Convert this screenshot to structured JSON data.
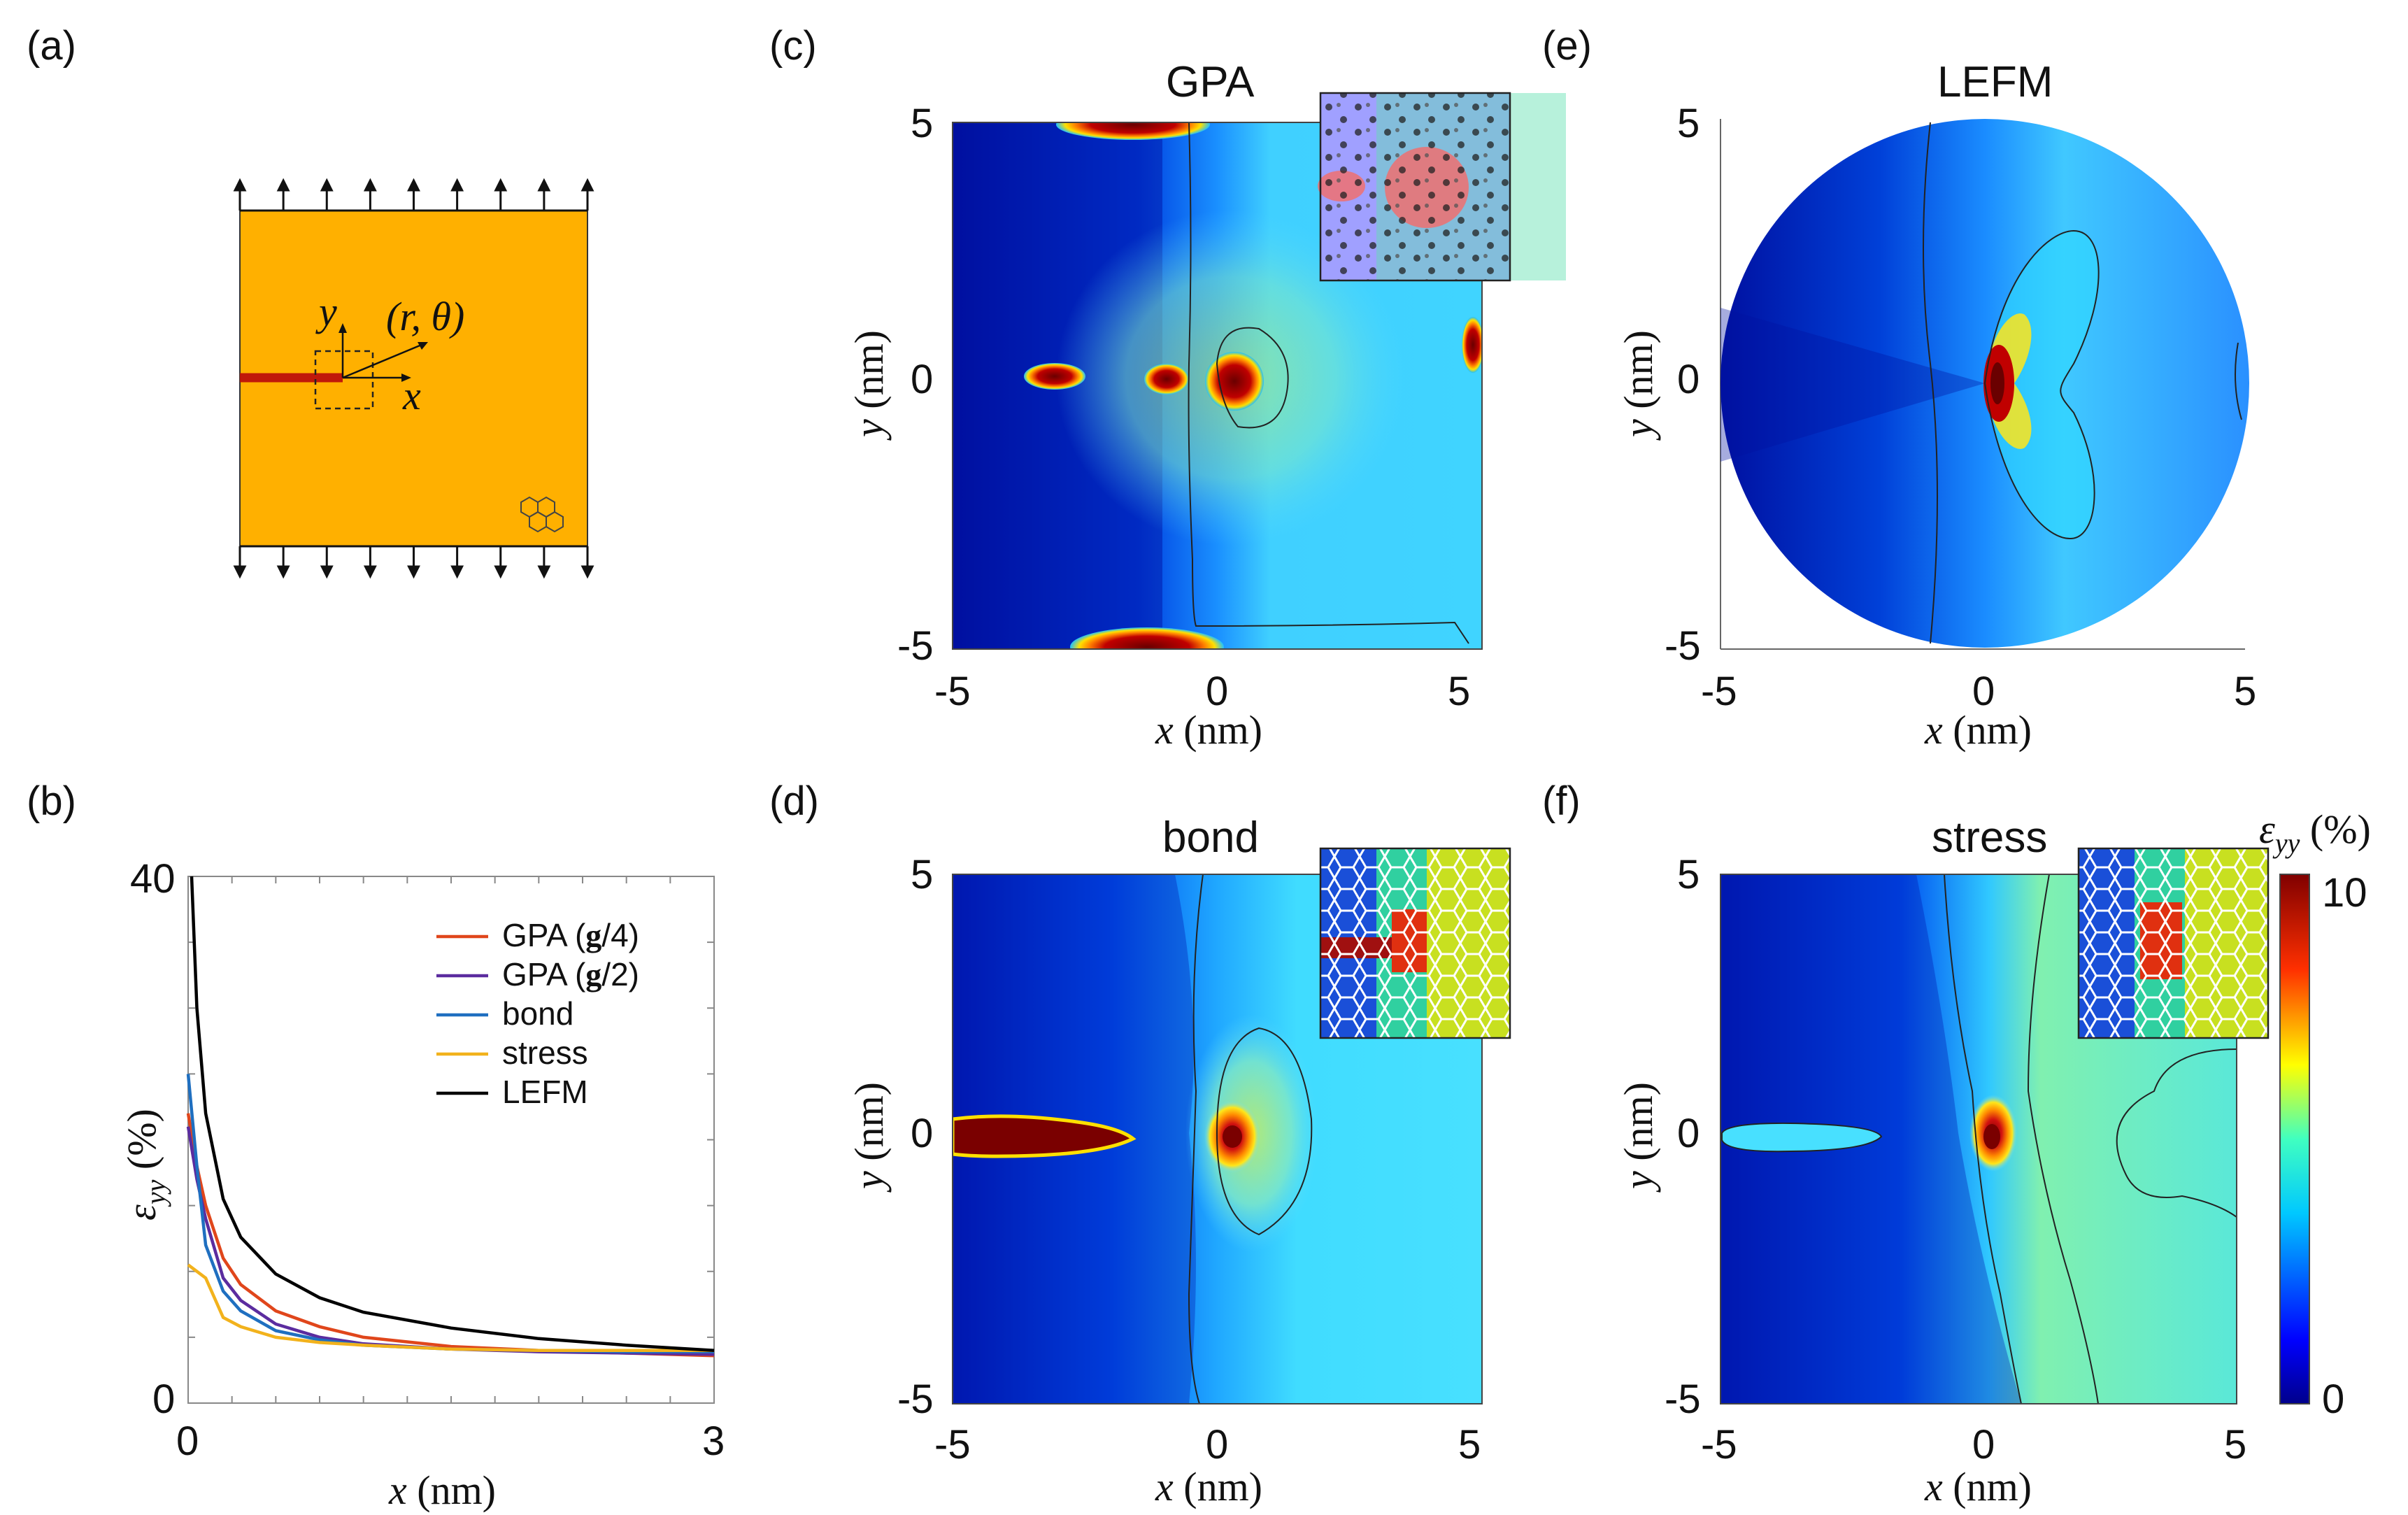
{
  "panels": {
    "a": {
      "label": "(a)",
      "coord_label": "(r, θ)",
      "x_axis": "x",
      "y_axis": "y"
    },
    "b": {
      "label": "(b)"
    },
    "c": {
      "label": "(c)"
    },
    "d": {
      "label": "(d)"
    },
    "e": {
      "label": "(e)"
    },
    "f": {
      "label": "(f)"
    }
  },
  "colors": {
    "orange": "#FFB000",
    "crack": "#C0180A",
    "jet_dark_blue": "#00008B",
    "jet_blue": "#0050FF",
    "jet_cyan": "#33D6FF",
    "jet_yellow": "#FFE61A",
    "jet_red": "#8B0000"
  },
  "colorbar": {
    "symbol": "ε",
    "subscript": "yy",
    "unit": "(%)",
    "max_label": "10",
    "min_label": "0"
  },
  "chart_data": [
    {
      "type": "line",
      "panel": "b",
      "xlabel": "x (nm)",
      "ylabel": "ε_yy (%)",
      "xlim": [
        0,
        3
      ],
      "ylim": [
        0,
        40
      ],
      "x_ticks": [
        "0",
        "3"
      ],
      "y_ticks": [
        "0",
        "40"
      ],
      "series": [
        {
          "name": "GPA (g/4)",
          "color": "#E0461B",
          "x": [
            0,
            0.05,
            0.1,
            0.2,
            0.3,
            0.5,
            0.75,
            1,
            1.5,
            2,
            2.5,
            3
          ],
          "y": [
            22,
            18,
            15,
            11,
            9,
            7,
            5.8,
            5,
            4.3,
            4,
            3.8,
            3.6
          ]
        },
        {
          "name": "GPA (g/2)",
          "color": "#5B2C9F",
          "x": [
            0,
            0.05,
            0.1,
            0.2,
            0.3,
            0.5,
            0.75,
            1,
            1.5,
            2,
            2.5,
            3
          ],
          "y": [
            21,
            17,
            14,
            9.5,
            7.8,
            6,
            5,
            4.5,
            4.1,
            3.9,
            3.8,
            3.7
          ]
        },
        {
          "name": "bond",
          "color": "#1F6FC0",
          "x": [
            0,
            0.05,
            0.1,
            0.2,
            0.3,
            0.5,
            0.75,
            1,
            1.5,
            2,
            2.5,
            3
          ],
          "y": [
            25,
            18,
            12,
            8.5,
            7,
            5.5,
            4.8,
            4.4,
            4.1,
            4,
            3.9,
            3.9
          ]
        },
        {
          "name": "stress",
          "color": "#F2B21C",
          "x": [
            0,
            0.1,
            0.2,
            0.3,
            0.5,
            0.75,
            1,
            1.5,
            2,
            2.5,
            3
          ],
          "y": [
            10.5,
            9.5,
            6.5,
            5.8,
            5,
            4.6,
            4.4,
            4.1,
            4,
            4,
            4
          ]
        },
        {
          "name": "LEFM",
          "color": "#000000",
          "x": [
            0.02,
            0.05,
            0.1,
            0.2,
            0.3,
            0.5,
            0.75,
            1,
            1.5,
            2,
            2.5,
            3
          ],
          "y": [
            40,
            30,
            22,
            15.5,
            12.6,
            9.8,
            8,
            6.9,
            5.7,
            4.9,
            4.4,
            4
          ]
        }
      ],
      "legend": [
        {
          "text": "GPA (",
          "bold": "g",
          "suffix": "/4)"
        },
        {
          "text": "GPA (",
          "bold": "g",
          "suffix": "/2)"
        },
        {
          "text": "bond",
          "bold": "",
          "suffix": ""
        },
        {
          "text": "stress",
          "bold": "",
          "suffix": ""
        },
        {
          "text": "LEFM",
          "bold": "",
          "suffix": ""
        }
      ]
    },
    {
      "type": "heatmap",
      "panel": "c",
      "title": "GPA",
      "xlabel": "x (nm)",
      "ylabel": "y (nm)",
      "xlim": [
        -5,
        5
      ],
      "ylim": [
        -5,
        5
      ],
      "x_ticks": [
        "-5",
        "0",
        "5"
      ],
      "y_ticks": [
        "5",
        "0",
        "-5"
      ],
      "has_inset": true
    },
    {
      "type": "heatmap",
      "panel": "d",
      "title": "bond",
      "xlabel": "x (nm)",
      "ylabel": "y (nm)",
      "xlim": [
        -5,
        5
      ],
      "ylim": [
        -5,
        5
      ],
      "x_ticks": [
        "-5",
        "0",
        "5"
      ],
      "y_ticks": [
        "5",
        "0",
        "-5"
      ],
      "has_inset": true
    },
    {
      "type": "heatmap",
      "panel": "e",
      "title": "LEFM",
      "xlabel": "x (nm)",
      "ylabel": "y (nm)",
      "xlim": [
        -5,
        5
      ],
      "ylim": [
        -5,
        5
      ],
      "x_ticks": [
        "-5",
        "0",
        "5"
      ],
      "y_ticks": [
        "5",
        "0",
        "-5"
      ],
      "has_inset": false
    },
    {
      "type": "heatmap",
      "panel": "f",
      "title": "stress",
      "xlabel": "x (nm)",
      "ylabel": "y (nm)",
      "xlim": [
        -5,
        5
      ],
      "ylim": [
        -5,
        5
      ],
      "x_ticks": [
        "-5",
        "0",
        "5"
      ],
      "y_ticks": [
        "5",
        "0",
        "-5"
      ],
      "has_inset": true
    }
  ]
}
